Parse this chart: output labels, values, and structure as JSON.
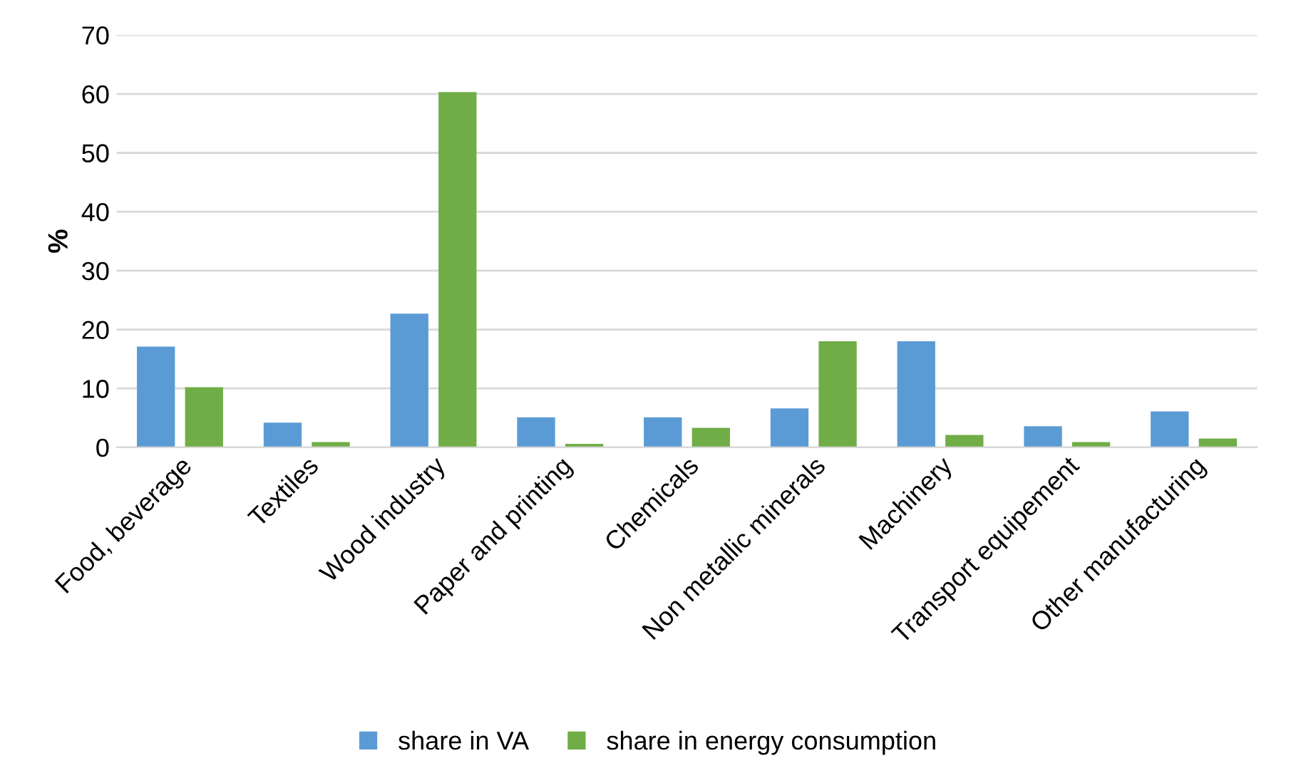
{
  "chart_data": {
    "type": "bar",
    "ylabel": "%",
    "categories": [
      "Food, beverage",
      "Textiles",
      "Wood industry",
      "Paper and printing",
      "Chemicals",
      "Non metallic minerals",
      "Machinery",
      "Transport equipement",
      "Other manufacturing"
    ],
    "series": [
      {
        "name": "share in VA",
        "color": "#5b9bd5",
        "values": [
          17.1,
          4.2,
          22.7,
          5.1,
          5.1,
          6.6,
          18.0,
          3.6,
          6.1
        ]
      },
      {
        "name": "share in energy consumption",
        "color": "#70ad47",
        "values": [
          10.2,
          0.9,
          60.3,
          0.6,
          3.3,
          18.0,
          2.1,
          0.9,
          1.5
        ]
      }
    ],
    "ylim": [
      0,
      70
    ],
    "yticks": [
      0,
      10,
      20,
      30,
      40,
      50,
      60,
      70
    ],
    "grid": "y",
    "legend": "bottom"
  }
}
